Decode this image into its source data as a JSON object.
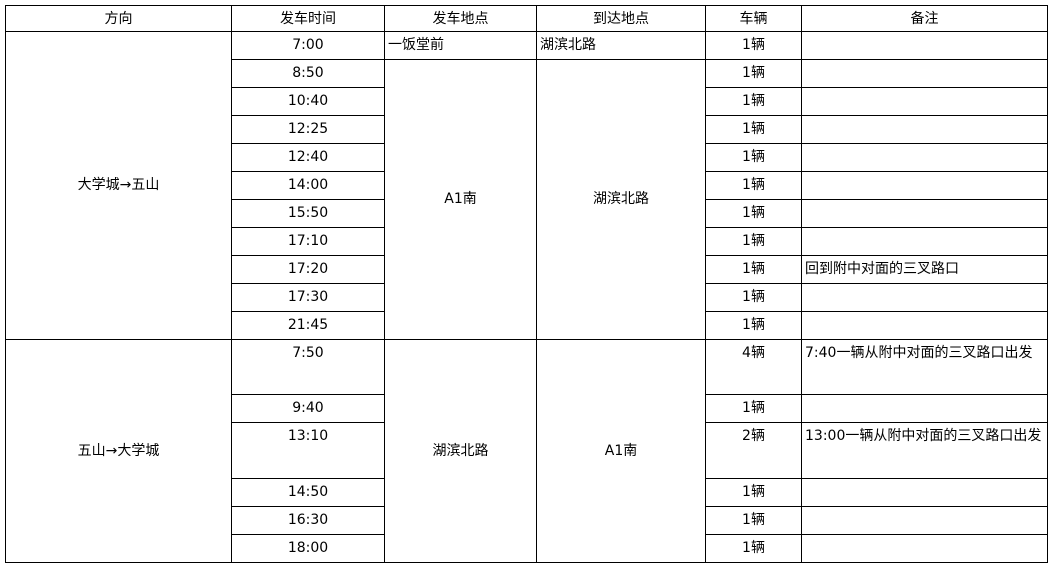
{
  "headers": [
    "方向",
    "发车时间",
    "发车地点",
    "到达地点",
    "车辆",
    "备注"
  ],
  "sections": [
    {
      "direction": "大学城→五山",
      "rows": [
        {
          "time": "7:00",
          "from": "一饭堂前",
          "to": "湖滨北路",
          "vehicles": "1辆",
          "note": ""
        },
        {
          "time": "8:50",
          "vehicles": "1辆",
          "note": ""
        },
        {
          "time": "10:40",
          "vehicles": "1辆",
          "note": ""
        },
        {
          "time": "12:25",
          "vehicles": "1辆",
          "note": ""
        },
        {
          "time": "12:40",
          "vehicles": "1辆",
          "note": ""
        },
        {
          "time": "14:00",
          "vehicles": "1辆",
          "note": ""
        },
        {
          "time": "15:50",
          "vehicles": "1辆",
          "note": ""
        },
        {
          "time": "17:10",
          "vehicles": "1辆",
          "note": ""
        },
        {
          "time": "17:20",
          "vehicles": "1辆",
          "note": "回到附中对面的三叉路口"
        },
        {
          "time": "17:30",
          "vehicles": "1辆",
          "note": ""
        },
        {
          "time": "21:45",
          "vehicles": "1辆",
          "note": ""
        }
      ],
      "merged_from": "A1南",
      "merged_to": "湖滨北路"
    },
    {
      "direction": "五山→大学城",
      "rows": [
        {
          "time": "7:50",
          "vehicles": "4辆",
          "note": "7:40一辆从附中对面的三叉路口出发"
        },
        {
          "time": "9:40",
          "vehicles": "1辆",
          "note": ""
        },
        {
          "time": "13:10",
          "vehicles": "2辆",
          "note": "13:00一辆从附中对面的三叉路口出发"
        },
        {
          "time": "14:50",
          "vehicles": "1辆",
          "note": ""
        },
        {
          "time": "16:30",
          "vehicles": "1辆",
          "note": ""
        },
        {
          "time": "18:00",
          "vehicles": "1辆",
          "note": ""
        }
      ],
      "merged_from": "湖滨北路",
      "merged_to": "A1南"
    }
  ]
}
